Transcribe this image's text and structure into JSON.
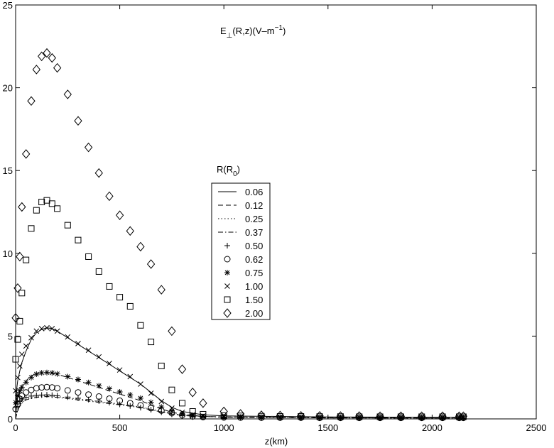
{
  "chart_data": {
    "type": "scatter",
    "title_main": "E",
    "title_sub": "⊥",
    "title_rest": "(R,z)(V–m",
    "title_sup": "−1",
    "title_close": ")",
    "xlabel": "z(km)",
    "ylabel": "",
    "xlim": [
      0,
      2500
    ],
    "ylim": [
      0,
      25
    ],
    "xticks": [
      "0",
      "500",
      "1000",
      "1500",
      "2000",
      "2500"
    ],
    "yticks": [
      "0",
      "5",
      "10",
      "15",
      "20",
      "25"
    ],
    "grid": false,
    "legend_title_main": "R(R",
    "legend_title_sub": "0",
    "legend_title_close": ")",
    "legend_position": "center",
    "series": [
      {
        "name": "0.06",
        "marker": "line-solid",
        "x": [
          0,
          5,
          10,
          20,
          30,
          50,
          75,
          100,
          125,
          150,
          175,
          200,
          250,
          300,
          350,
          400,
          450,
          500,
          550,
          600,
          650,
          700,
          750,
          800,
          900,
          1000,
          1500,
          2000,
          2150
        ],
        "y": [
          0,
          1.8,
          2.3,
          2.9,
          3.4,
          4.1,
          4.8,
          5.2,
          5.4,
          5.5,
          5.45,
          5.3,
          4.9,
          4.5,
          4.1,
          3.7,
          3.3,
          2.9,
          2.5,
          2.1,
          1.6,
          1.1,
          0.7,
          0.45,
          0.25,
          0.18,
          0.12,
          0.1,
          0.1
        ]
      },
      {
        "name": "0.12",
        "marker": "line-dashed",
        "x": [
          0,
          5,
          10,
          20,
          30,
          50,
          75,
          100,
          125,
          150,
          175,
          200,
          250,
          300,
          350,
          400,
          450,
          500,
          550,
          600,
          650,
          700,
          750,
          800,
          900,
          1000,
          1500,
          2000,
          2150
        ],
        "y": [
          0,
          0.9,
          1.3,
          1.7,
          2.0,
          2.3,
          2.6,
          2.75,
          2.8,
          2.8,
          2.75,
          2.7,
          2.5,
          2.3,
          2.1,
          1.9,
          1.7,
          1.5,
          1.3,
          1.1,
          0.85,
          0.6,
          0.4,
          0.28,
          0.15,
          0.12,
          0.08,
          0.06,
          0.06
        ]
      },
      {
        "name": "0.25",
        "marker": "line-dotted",
        "x": [
          0,
          10,
          30,
          50,
          100,
          150,
          200,
          300,
          400,
          500,
          600,
          700,
          800,
          1000,
          1500,
          2000,
          2150
        ],
        "y": [
          0,
          0.6,
          1.0,
          1.2,
          1.35,
          1.4,
          1.35,
          1.2,
          1.05,
          0.9,
          0.72,
          0.45,
          0.22,
          0.1,
          0.06,
          0.05,
          0.05
        ]
      },
      {
        "name": "0.37",
        "marker": "line-dashdot",
        "x": [
          0,
          10,
          30,
          50,
          100,
          150,
          200,
          300,
          400,
          500,
          600,
          700,
          800,
          1000,
          1500,
          2000,
          2150
        ],
        "y": [
          0,
          0.55,
          0.95,
          1.15,
          1.3,
          1.35,
          1.3,
          1.15,
          1.0,
          0.85,
          0.68,
          0.42,
          0.2,
          0.1,
          0.06,
          0.05,
          0.05
        ]
      },
      {
        "name": "0.50",
        "marker": "plus",
        "x": [
          0,
          10,
          20,
          30,
          50,
          75,
          100,
          125,
          150,
          175,
          200,
          250,
          300,
          350,
          400,
          450,
          500,
          550,
          600,
          650,
          700,
          750,
          800,
          850,
          900,
          1000,
          1080,
          1180,
          1270,
          1370,
          1460,
          1560,
          1650,
          1750,
          1850,
          1950,
          2050,
          2130,
          2150
        ],
        "y": [
          0.7,
          0.9,
          1.1,
          1.2,
          1.3,
          1.38,
          1.42,
          1.44,
          1.45,
          1.43,
          1.4,
          1.32,
          1.25,
          1.17,
          1.08,
          0.98,
          0.88,
          0.78,
          0.68,
          0.55,
          0.4,
          0.28,
          0.18,
          0.12,
          0.09,
          0.07,
          0.07,
          0.06,
          0.06,
          0.06,
          0.05,
          0.05,
          0.05,
          0.05,
          0.05,
          0.05,
          0.05,
          0.05,
          0.05
        ]
      },
      {
        "name": "0.62",
        "marker": "circle",
        "x": [
          0,
          10,
          20,
          30,
          50,
          75,
          100,
          125,
          150,
          175,
          200,
          250,
          300,
          350,
          400,
          450,
          500,
          550,
          600,
          650,
          700,
          750,
          800,
          850,
          900,
          1000,
          1080,
          1180,
          1270,
          1370,
          1460,
          1560,
          1650,
          1750,
          1850,
          1950,
          2050,
          2130,
          2150
        ],
        "y": [
          0.6,
          0.9,
          1.2,
          1.4,
          1.6,
          1.75,
          1.85,
          1.9,
          1.92,
          1.9,
          1.85,
          1.72,
          1.6,
          1.47,
          1.35,
          1.22,
          1.1,
          0.95,
          0.82,
          0.65,
          0.5,
          0.35,
          0.22,
          0.15,
          0.11,
          0.09,
          0.08,
          0.07,
          0.07,
          0.07,
          0.06,
          0.06,
          0.06,
          0.06,
          0.06,
          0.06,
          0.06,
          0.06,
          0.06
        ]
      },
      {
        "name": "0.75",
        "marker": "asterisk",
        "x": [
          0,
          10,
          20,
          30,
          50,
          75,
          100,
          125,
          150,
          175,
          200,
          250,
          300,
          350,
          400,
          450,
          500,
          550,
          600,
          650,
          700,
          750,
          800,
          850,
          900,
          1000,
          1080,
          1180,
          1270,
          1370,
          1460,
          1560,
          1650,
          1750,
          1850,
          1950,
          2050,
          2130,
          2150
        ],
        "y": [
          1.0,
          1.4,
          1.7,
          1.9,
          2.2,
          2.5,
          2.7,
          2.78,
          2.8,
          2.78,
          2.72,
          2.55,
          2.38,
          2.2,
          2.0,
          1.82,
          1.63,
          1.45,
          1.25,
          1.0,
          0.72,
          0.48,
          0.3,
          0.2,
          0.14,
          0.11,
          0.1,
          0.09,
          0.09,
          0.08,
          0.08,
          0.08,
          0.08,
          0.07,
          0.07,
          0.07,
          0.07,
          0.07,
          0.07
        ]
      },
      {
        "name": "1.00",
        "marker": "cross",
        "x": [
          0,
          10,
          20,
          30,
          50,
          75,
          100,
          125,
          150,
          175,
          200,
          250,
          300,
          350,
          400,
          450,
          500,
          550,
          600,
          650,
          700,
          750,
          800,
          850,
          900,
          1000,
          1080,
          1180,
          1270,
          1370,
          1460,
          1560,
          1650,
          1750,
          1850,
          1950,
          2050,
          2130,
          2150
        ],
        "y": [
          1.7,
          2.5,
          3.2,
          3.9,
          4.4,
          4.9,
          5.3,
          5.45,
          5.5,
          5.45,
          5.3,
          4.95,
          4.55,
          4.15,
          3.75,
          3.35,
          2.95,
          2.55,
          2.1,
          1.55,
          1.05,
          0.65,
          0.4,
          0.25,
          0.18,
          0.14,
          0.13,
          0.12,
          0.11,
          0.11,
          0.1,
          0.1,
          0.1,
          0.1,
          0.1,
          0.1,
          0.1,
          0.1,
          0.1
        ]
      },
      {
        "name": "1.50",
        "marker": "square",
        "x": [
          0,
          10,
          20,
          30,
          50,
          75,
          100,
          125,
          150,
          175,
          200,
          250,
          300,
          350,
          400,
          450,
          500,
          550,
          600,
          650,
          700,
          750,
          800,
          850,
          900,
          1000,
          1080,
          1180,
          1270,
          1370,
          1460,
          1560,
          1650,
          1750,
          1850,
          1950,
          2050,
          2130,
          2150
        ],
        "y": [
          3.6,
          4.8,
          5.9,
          7.6,
          9.6,
          11.5,
          12.6,
          13.1,
          13.2,
          13.0,
          12.7,
          11.7,
          10.8,
          9.8,
          8.9,
          8.0,
          7.35,
          6.8,
          5.65,
          4.65,
          3.2,
          1.75,
          0.95,
          0.45,
          0.28,
          0.2,
          0.18,
          0.16,
          0.15,
          0.15,
          0.14,
          0.14,
          0.13,
          0.13,
          0.13,
          0.13,
          0.13,
          0.13,
          0.13
        ]
      },
      {
        "name": "2.00",
        "marker": "diamond",
        "x": [
          0,
          10,
          20,
          30,
          50,
          75,
          100,
          125,
          150,
          175,
          200,
          250,
          300,
          350,
          400,
          450,
          500,
          550,
          600,
          650,
          700,
          750,
          800,
          850,
          900,
          1000,
          1080,
          1180,
          1270,
          1370,
          1460,
          1560,
          1650,
          1750,
          1850,
          1950,
          2050,
          2130,
          2150
        ],
        "y": [
          6.1,
          7.9,
          9.8,
          12.8,
          16.0,
          19.2,
          21.1,
          21.9,
          22.1,
          21.8,
          21.2,
          19.6,
          18.0,
          16.4,
          14.85,
          13.45,
          12.3,
          11.35,
          10.4,
          9.35,
          7.8,
          5.3,
          3.0,
          1.6,
          0.95,
          0.45,
          0.3,
          0.22,
          0.2,
          0.18,
          0.18,
          0.17,
          0.17,
          0.16,
          0.16,
          0.16,
          0.16,
          0.16,
          0.16
        ]
      }
    ]
  }
}
